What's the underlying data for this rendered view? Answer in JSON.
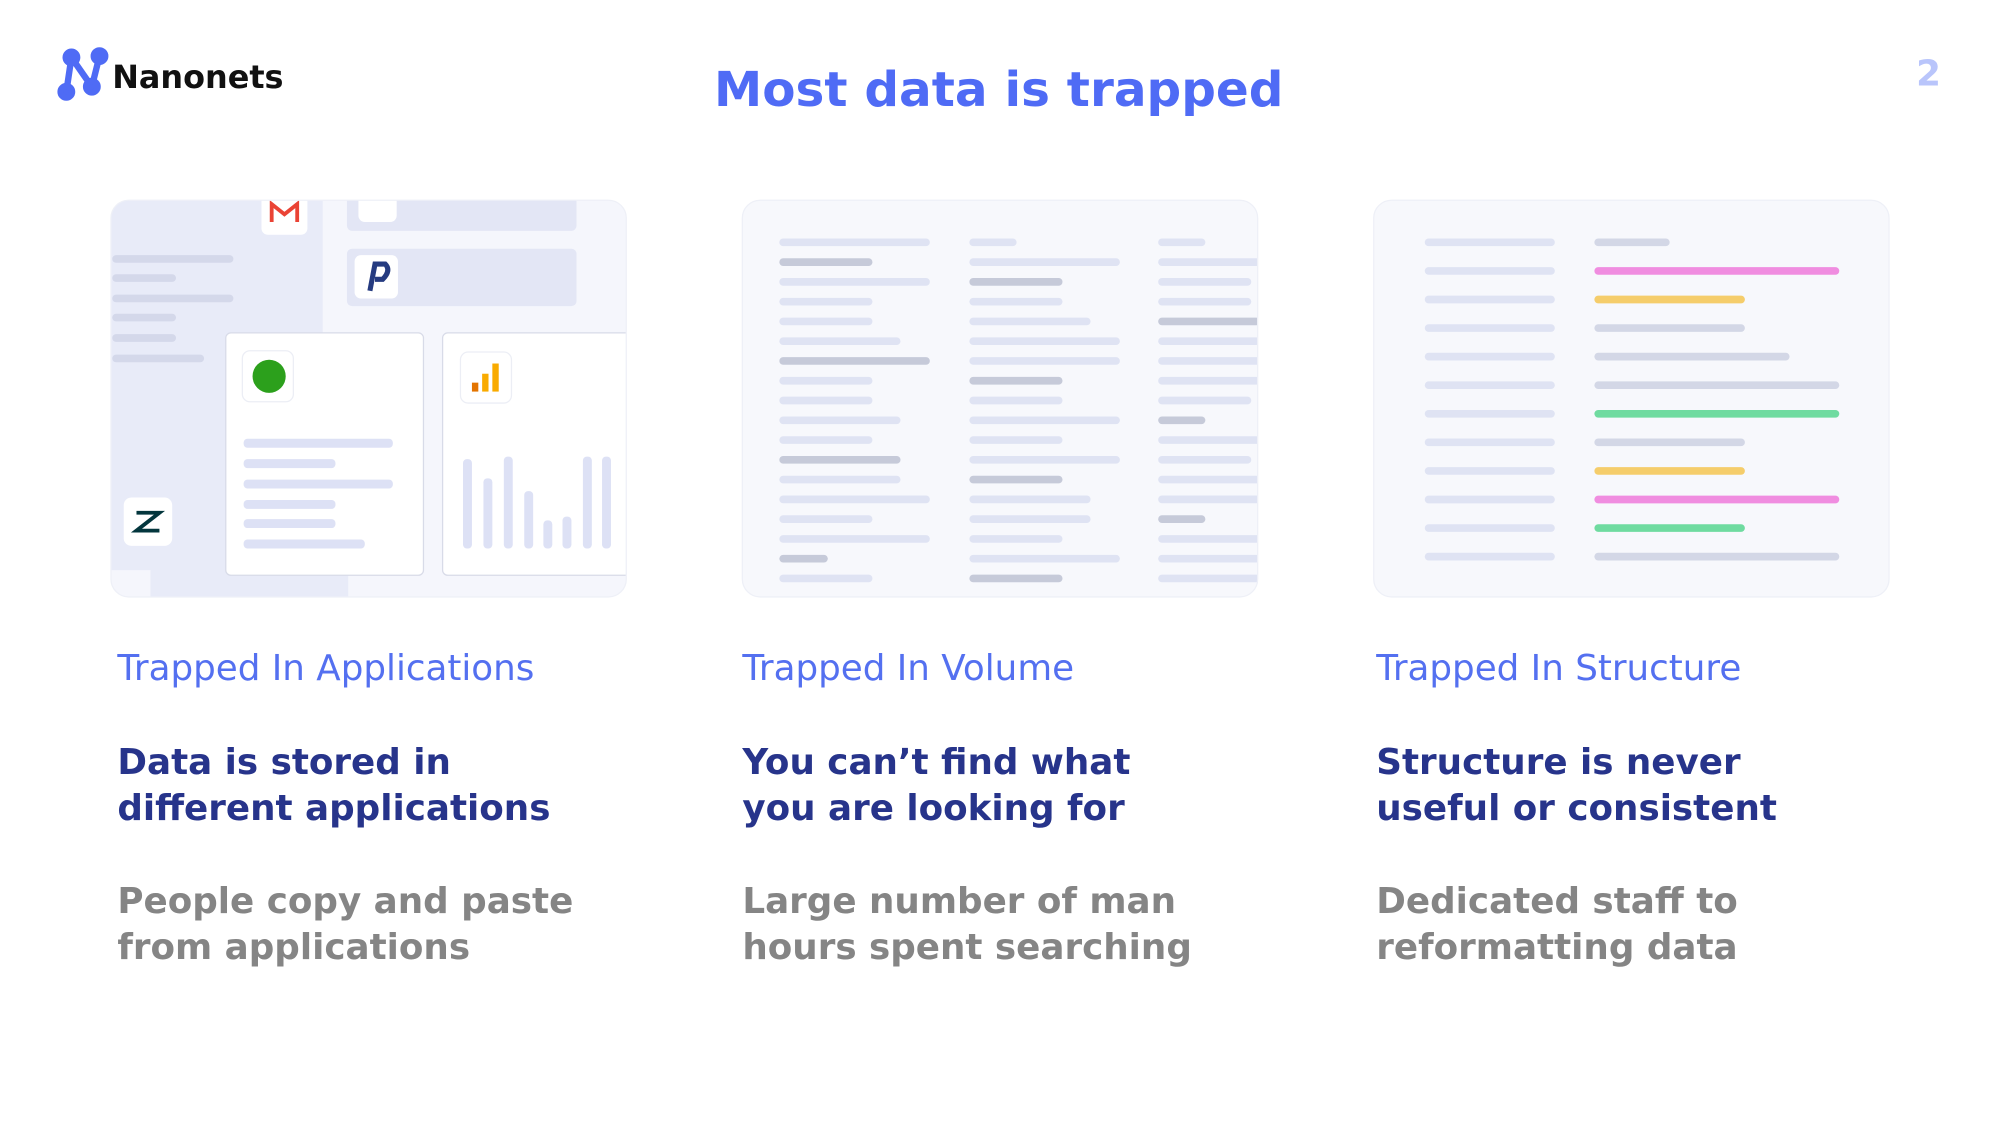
{
  "logo": {
    "text": "Nanonets"
  },
  "page_number": "2",
  "title": "Most data is trapped",
  "columns": [
    {
      "heading": "Trapped In Applications",
      "subtitle": [
        "Data is stored in",
        "different applications"
      ],
      "description": [
        "People copy and paste",
        "from applications"
      ]
    },
    {
      "heading": "Trapped In Volume",
      "subtitle": [
        "You can’t find what",
        "you are looking for"
      ],
      "description": [
        "Large number of man",
        "hours spent searching"
      ]
    },
    {
      "heading": "Trapped In Structure",
      "subtitle": [
        "Structure is never",
        "useful or consistent"
      ],
      "description": [
        "Dedicated staff to",
        "reformatting data"
      ]
    }
  ]
}
